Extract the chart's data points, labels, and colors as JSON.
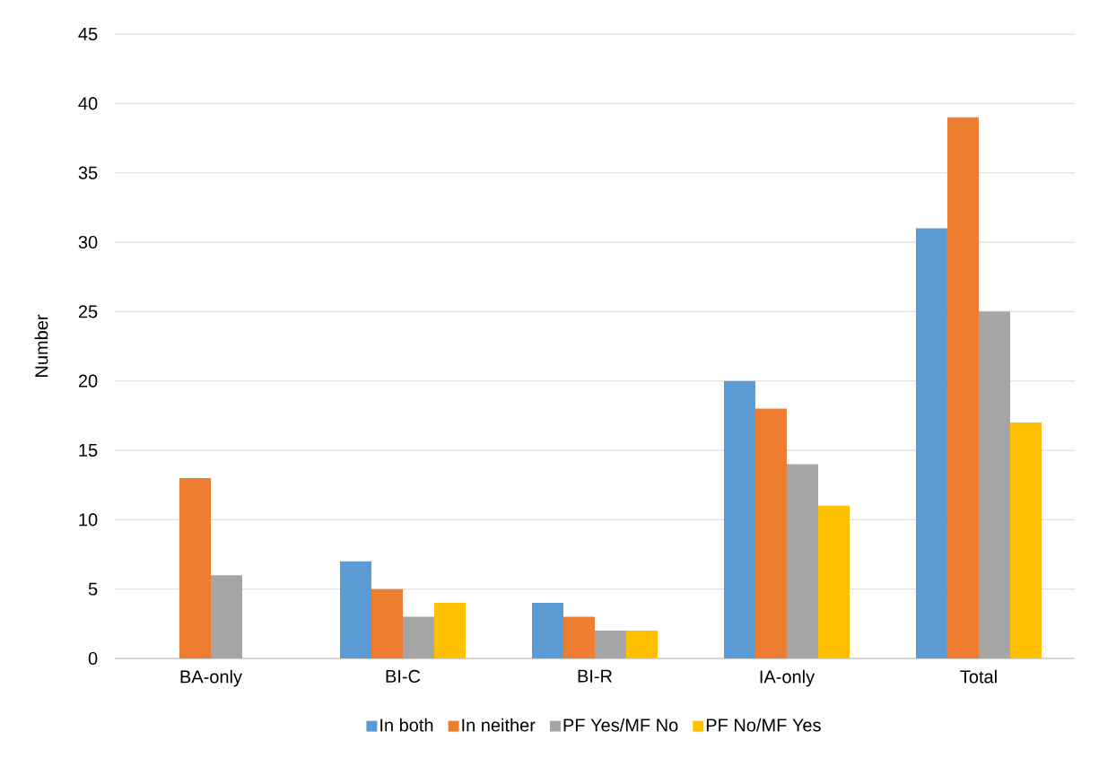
{
  "chart_data": {
    "type": "bar",
    "ylabel": "Number",
    "categories": [
      "BA-only",
      "BI-C",
      "BI-R",
      "IA-only",
      "Total"
    ],
    "series": [
      {
        "name": "In both",
        "color": "#5b9bd5",
        "values": [
          0,
          7,
          4,
          20,
          31
        ]
      },
      {
        "name": "In neither",
        "color": "#ed7d31",
        "values": [
          13,
          5,
          3,
          18,
          39
        ]
      },
      {
        "name": "PF Yes/MF No",
        "color": "#a5a5a5",
        "values": [
          6,
          3,
          2,
          14,
          25
        ]
      },
      {
        "name": "PF No/MF Yes",
        "color": "#ffc000",
        "values": [
          0,
          4,
          2,
          11,
          17
        ]
      }
    ],
    "ylim": [
      0,
      45
    ],
    "yticks": [
      0,
      5,
      10,
      15,
      20,
      25,
      30,
      35,
      40,
      45
    ],
    "grid": "y",
    "legend": "bottom"
  }
}
